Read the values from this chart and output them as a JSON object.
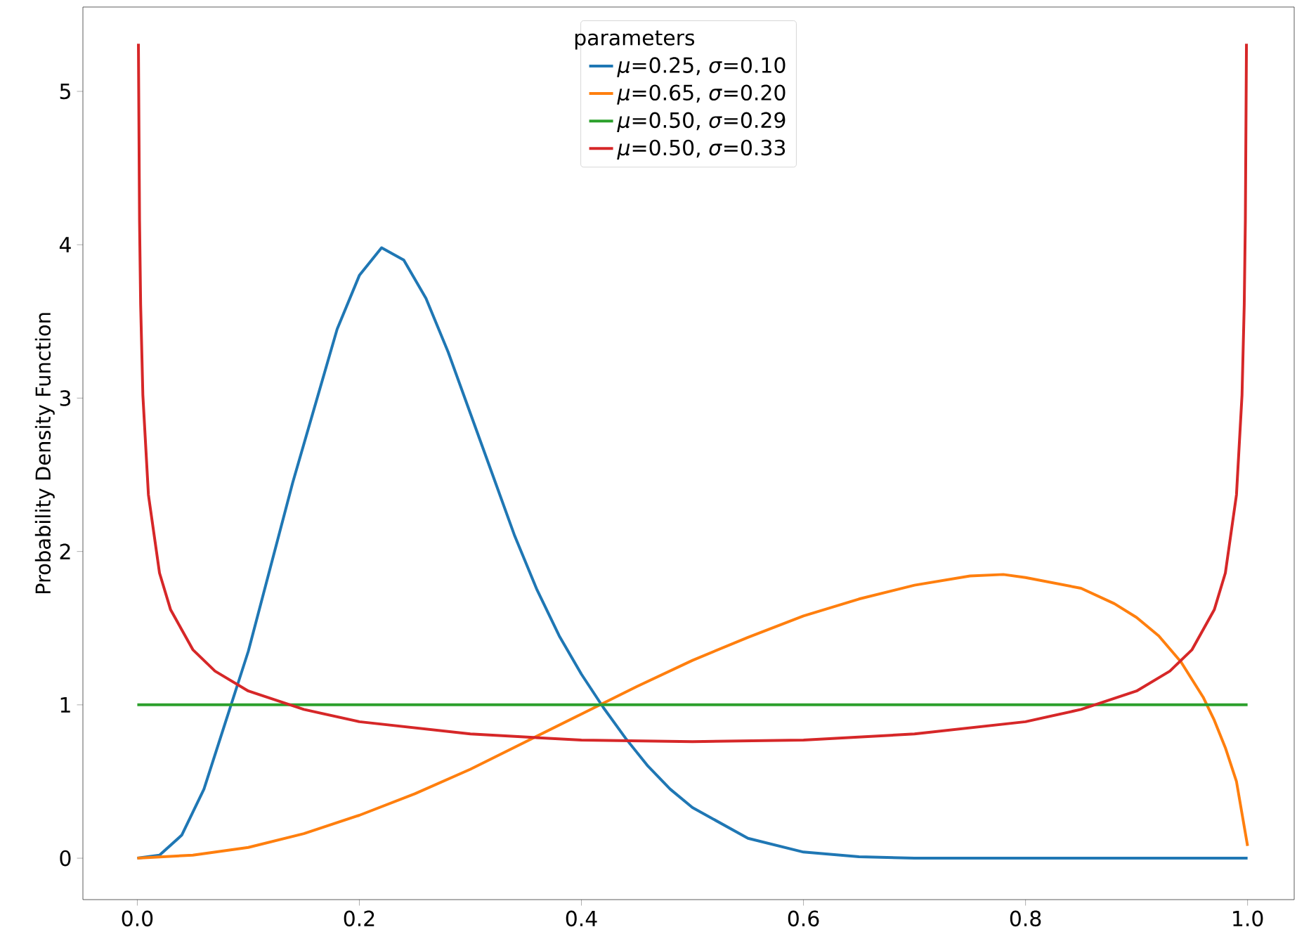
{
  "chart_data": {
    "type": "line",
    "ylabel": "Probability Density Function",
    "legend_title": "parameters",
    "legend": "top",
    "grid": false,
    "xlim": [
      -0.049,
      1.042
    ],
    "ylim": [
      -0.27,
      5.55
    ],
    "xticks": [
      {
        "value": 0,
        "label": "0.0"
      },
      {
        "value": 0.2,
        "label": "0.2"
      },
      {
        "value": 0.4,
        "label": "0.4"
      },
      {
        "value": 0.6,
        "label": "0.6"
      },
      {
        "value": 0.8,
        "label": "0.8"
      },
      {
        "value": 1,
        "label": "1.0"
      }
    ],
    "yticks": [
      0,
      1,
      2,
      3,
      4,
      5
    ],
    "series": [
      {
        "name": "*μ*=0.25, *σ*=0.10",
        "color": "#1f77b4",
        "x": [
          0,
          0.02,
          0.04,
          0.06,
          0.08,
          0.1,
          0.12,
          0.14,
          0.16,
          0.18,
          0.2,
          0.22,
          0.24,
          0.26,
          0.28,
          0.3,
          0.32,
          0.34,
          0.36,
          0.38,
          0.4,
          0.42,
          0.44,
          0.46,
          0.48,
          0.5,
          0.55,
          0.6,
          0.65,
          0.7,
          0.8,
          0.9,
          1.0
        ],
        "values": [
          0,
          0.02,
          0.15,
          0.45,
          0.9,
          1.35,
          1.9,
          2.45,
          2.95,
          3.45,
          3.8,
          3.98,
          3.9,
          3.65,
          3.3,
          2.9,
          2.5,
          2.1,
          1.75,
          1.45,
          1.2,
          0.98,
          0.78,
          0.6,
          0.45,
          0.33,
          0.13,
          0.04,
          0.01,
          0,
          0,
          0,
          0
        ]
      },
      {
        "name": "*μ*=0.65, *σ*=0.20",
        "color": "#ff7f0e",
        "x": [
          0,
          0.05,
          0.1,
          0.15,
          0.2,
          0.25,
          0.3,
          0.35,
          0.4,
          0.45,
          0.5,
          0.55,
          0.6,
          0.65,
          0.7,
          0.75,
          0.78,
          0.8,
          0.85,
          0.88,
          0.9,
          0.92,
          0.94,
          0.96,
          0.97,
          0.98,
          0.99,
          1.0
        ],
        "values": [
          0,
          0.02,
          0.07,
          0.16,
          0.28,
          0.42,
          0.58,
          0.76,
          0.94,
          1.12,
          1.29,
          1.44,
          1.58,
          1.69,
          1.78,
          1.84,
          1.85,
          1.83,
          1.76,
          1.66,
          1.57,
          1.45,
          1.28,
          1.05,
          0.9,
          0.72,
          0.5,
          0.08
        ]
      },
      {
        "name": "*μ*=0.50, *σ*=0.29",
        "color": "#2ca02c",
        "x": [
          0,
          1
        ],
        "values": [
          1,
          1
        ]
      },
      {
        "name": "*μ*=0.50, *σ*=0.33",
        "color": "#d62728",
        "x": [
          0.001,
          0.002,
          0.003,
          0.005,
          0.01,
          0.02,
          0.03,
          0.05,
          0.07,
          0.1,
          0.15,
          0.2,
          0.3,
          0.4,
          0.5,
          0.6,
          0.7,
          0.8,
          0.85,
          0.9,
          0.93,
          0.95,
          0.97,
          0.98,
          0.99,
          0.995,
          0.997,
          0.998,
          0.999
        ],
        "values": [
          5.31,
          4.16,
          3.61,
          3.02,
          2.37,
          1.86,
          1.62,
          1.36,
          1.22,
          1.09,
          0.97,
          0.89,
          0.81,
          0.77,
          0.76,
          0.77,
          0.81,
          0.89,
          0.97,
          1.09,
          1.22,
          1.36,
          1.62,
          1.86,
          2.37,
          3.02,
          3.61,
          4.16,
          5.31
        ]
      }
    ]
  }
}
